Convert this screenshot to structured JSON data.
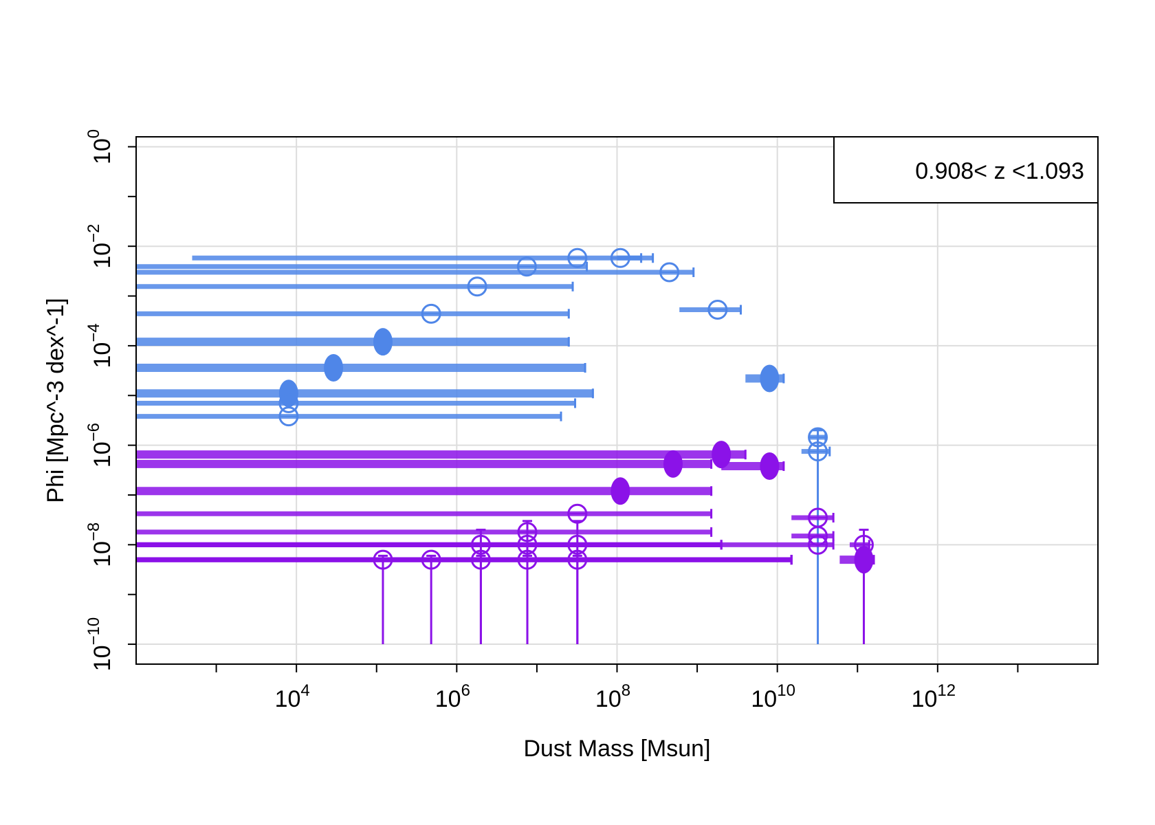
{
  "chart_data": {
    "type": "scatter",
    "title": "",
    "xlabel": "Dust Mass [Msun]",
    "ylabel": "Phi [Mpc^-3 dex^-1]",
    "x_scale": "log10",
    "y_scale": "log10",
    "xlim": [
      100,
      100000000000000.0
    ],
    "ylim": [
      1e-10,
      1
    ],
    "x_ticks": [
      {
        "base": "10",
        "exp": "4",
        "value": 10000.0
      },
      {
        "base": "10",
        "exp": "6",
        "value": 1000000.0
      },
      {
        "base": "10",
        "exp": "8",
        "value": 100000000.0
      },
      {
        "base": "10",
        "exp": "10",
        "value": 10000000000.0
      },
      {
        "base": "10",
        "exp": "12",
        "value": 1000000000000.0
      }
    ],
    "y_ticks": [
      {
        "base": "10",
        "exp": "0",
        "value": 1
      },
      {
        "base": "10",
        "exp": "−2",
        "value": 0.01
      },
      {
        "base": "10",
        "exp": "−4",
        "value": 0.0001
      },
      {
        "base": "10",
        "exp": "−6",
        "value": 1e-06
      },
      {
        "base": "10",
        "exp": "−8",
        "value": 1e-08
      },
      {
        "base": "10",
        "exp": "−10",
        "value": 1e-10
      }
    ],
    "grid": true,
    "legend": {
      "text": "0.908< z <1.093",
      "position": "top-right"
    },
    "colors": {
      "blue": "#4f86e8",
      "purple": "#8b12e8"
    },
    "series": [
      {
        "color": "blue",
        "points": [
          {
            "x": 32000000.0,
            "y": 0.0058,
            "xerr": [
              500.0,
              200000000.0
            ],
            "marker": "open"
          },
          {
            "x": 110000000.0,
            "y": 0.0058,
            "xerr": [
              100000000.0,
              280000000.0
            ],
            "marker": "open"
          },
          {
            "x": 7500000.0,
            "y": 0.0039,
            "xerr": [
              100.0,
              42000000.0
            ],
            "marker": "open"
          },
          {
            "x": 450000000.0,
            "y": 0.003,
            "xerr": [
              100.0,
              900000000.0
            ],
            "marker": "open"
          },
          {
            "x": 1800000.0,
            "y": 0.00155,
            "xerr": [
              100.0,
              28000000.0
            ],
            "marker": "open"
          },
          {
            "x": 1800000000.0,
            "y": 0.00053,
            "xerr": [
              600000000.0,
              3500000000.0
            ],
            "marker": "open"
          },
          {
            "x": 480000.0,
            "y": 0.00044,
            "xerr": [
              100.0,
              25000000.0
            ],
            "marker": "open"
          },
          {
            "x": 120000.0,
            "y": 0.00012,
            "xerr": [
              100.0,
              25000000.0
            ],
            "marker": "filled"
          },
          {
            "x": 29000.0,
            "y": 3.6e-05,
            "xerr": [
              100.0,
              40000000.0
            ],
            "marker": "filled"
          },
          {
            "x": 8000000000.0,
            "y": 2.2e-05,
            "xerr": [
              4000000000.0,
              12000000000.0
            ],
            "marker": "filled"
          },
          {
            "x": 8000.0,
            "y": 1.1e-05,
            "xerr": [
              100.0,
              50000000.0
            ],
            "marker": "filled"
          },
          {
            "x": 8000.0,
            "y": 7e-06,
            "xerr": [
              100.0,
              30000000.0
            ],
            "marker": "open"
          },
          {
            "x": 8000.0,
            "y": 3.8e-06,
            "xerr": [
              100.0,
              20000000.0
            ],
            "marker": "open"
          },
          {
            "x": 32000000000.0,
            "y": 1.45e-06,
            "xerr": [
              25000000000.0,
              40000000000.0
            ],
            "marker": "open",
            "yerr": [
              1e-10,
              2e-06
            ]
          },
          {
            "x": 32000000000.0,
            "y": 7.5e-07,
            "xerr": [
              20000000000.0,
              45000000000.0
            ],
            "marker": "open"
          }
        ]
      },
      {
        "color": "purple",
        "points": [
          {
            "x": 2000000000.0,
            "y": 6.5e-07,
            "xerr": [
              100.0,
              4000000000.0
            ],
            "marker": "filled"
          },
          {
            "x": 500000000.0,
            "y": 4.2e-07,
            "xerr": [
              100.0,
              1500000000.0
            ],
            "marker": "filled"
          },
          {
            "x": 8000000000.0,
            "y": 3.8e-07,
            "xerr": [
              2000000000.0,
              12000000000.0
            ],
            "marker": "filled"
          },
          {
            "x": 110000000.0,
            "y": 1.2e-07,
            "xerr": [
              100.0,
              1500000000.0
            ],
            "marker": "filled"
          },
          {
            "x": 32000000.0,
            "y": 4.2e-08,
            "xerr": [
              100.0,
              1500000000.0
            ],
            "marker": "open"
          },
          {
            "x": 32000000000.0,
            "y": 3.5e-08,
            "xerr": [
              15000000000.0,
              50000000000.0
            ],
            "marker": "open"
          },
          {
            "x": 7600000.0,
            "y": 1.8e-08,
            "xerr": [
              100.0,
              1500000000.0
            ],
            "marker": "open"
          },
          {
            "x": 32000000000.0,
            "y": 1.5e-08,
            "xerr": [
              15000000000.0,
              50000000000.0
            ],
            "marker": "open"
          },
          {
            "x": 2000000.0,
            "y": 1e-08,
            "xerr": [
              100.0,
              2000000000.0
            ],
            "marker": "open",
            "yerr": [
              1e-10,
              2e-08
            ]
          },
          {
            "x": 7600000.0,
            "y": 1e-08,
            "xerr": [
              100.0,
              2000000000.0
            ],
            "marker": "open",
            "yerr": [
              1e-10,
              3e-08
            ]
          },
          {
            "x": 32000000.0,
            "y": 1e-08,
            "xerr": [
              100.0,
              2000000000.0
            ],
            "marker": "open",
            "yerr": [
              1e-10,
              3e-08
            ]
          },
          {
            "x": 32000000000.0,
            "y": 1e-08,
            "xerr": [
              100.0,
              50000000000.0
            ],
            "marker": "open"
          },
          {
            "x": 120000000000.0,
            "y": 1e-08,
            "xerr": [
              80000000000.0,
              140000000000.0
            ],
            "marker": "open",
            "yerr": [
              1e-10,
              2e-08
            ]
          },
          {
            "x": 120000.0,
            "y": 5e-09,
            "xerr": [
              100.0,
              15000000000.0
            ],
            "marker": "open",
            "yerr": [
              1e-10,
              6e-09
            ]
          },
          {
            "x": 480000.0,
            "y": 5e-09,
            "xerr": [
              100.0,
              15000000000.0
            ],
            "marker": "open",
            "yerr": [
              1e-10,
              6e-09
            ]
          },
          {
            "x": 2000000.0,
            "y": 5e-09,
            "xerr": [
              100.0,
              15000000000.0
            ],
            "marker": "open",
            "yerr": [
              1e-10,
              6e-09
            ]
          },
          {
            "x": 7600000.0,
            "y": 5e-09,
            "xerr": [
              100.0,
              15000000000.0
            ],
            "marker": "open",
            "yerr": [
              1e-10,
              6e-09
            ]
          },
          {
            "x": 32000000.0,
            "y": 5e-09,
            "xerr": [
              100.0,
              15000000000.0
            ],
            "marker": "open",
            "yerr": [
              1e-10,
              6e-09
            ]
          },
          {
            "x": 120000000000.0,
            "y": 5e-09,
            "xerr": [
              60000000000.0,
              160000000000.0
            ],
            "marker": "filled"
          }
        ]
      }
    ]
  }
}
